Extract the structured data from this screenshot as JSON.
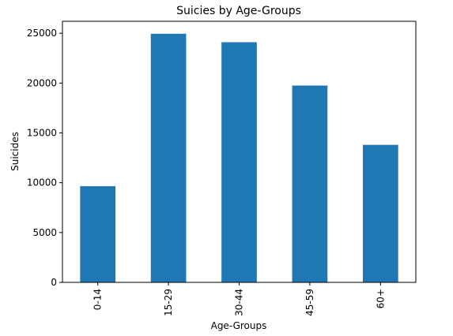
{
  "chart_data": {
    "type": "bar",
    "title": "Suicies by Age-Groups",
    "xlabel": "Age-Groups",
    "ylabel": "Suicides",
    "categories": [
      "0-14",
      "15-29",
      "30-44",
      "45-59",
      "60+"
    ],
    "values": [
      9650,
      24950,
      24100,
      19750,
      13800
    ],
    "ylim": [
      0,
      26200
    ],
    "yticks": [
      0,
      5000,
      10000,
      15000,
      20000,
      25000
    ],
    "bar_color": "#1f77b4",
    "grid": false,
    "legend": "none"
  }
}
